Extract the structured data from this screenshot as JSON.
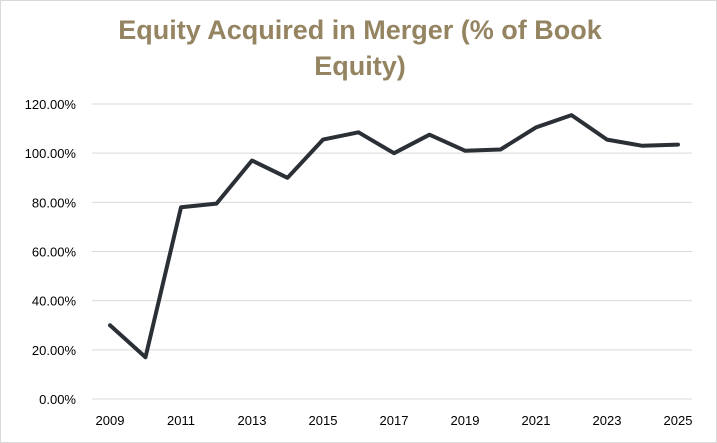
{
  "chart_data": {
    "type": "line",
    "title": "Equity Acquired  in Merger (% of Book Equity)",
    "xlabel": "",
    "ylabel": "",
    "x": [
      2009,
      2010,
      2011,
      2012,
      2013,
      2014,
      2015,
      2016,
      2017,
      2018,
      2019,
      2020,
      2021,
      2022,
      2023,
      2024,
      2025
    ],
    "x_tick_labels": [
      "2009",
      "2011",
      "2013",
      "2015",
      "2017",
      "2019",
      "2021",
      "2023",
      "2025"
    ],
    "y_tick_labels": [
      "0.00%",
      "20.00%",
      "40.00%",
      "60.00%",
      "80.00%",
      "100.00%",
      "120.00%"
    ],
    "ylim": [
      0,
      120
    ],
    "grid": "horizontal",
    "legend": "none",
    "series": [
      {
        "values": [
          30,
          17,
          78,
          79.5,
          97,
          90,
          105.5,
          108.5,
          100,
          107.5,
          101,
          101.5,
          110.5,
          115.5,
          105.5,
          103,
          103.5
        ]
      }
    ],
    "colors": {
      "title": "#958461",
      "line": "#2b2f36",
      "grid": "#d9d9d9",
      "frame": "#d9d9d9"
    }
  }
}
